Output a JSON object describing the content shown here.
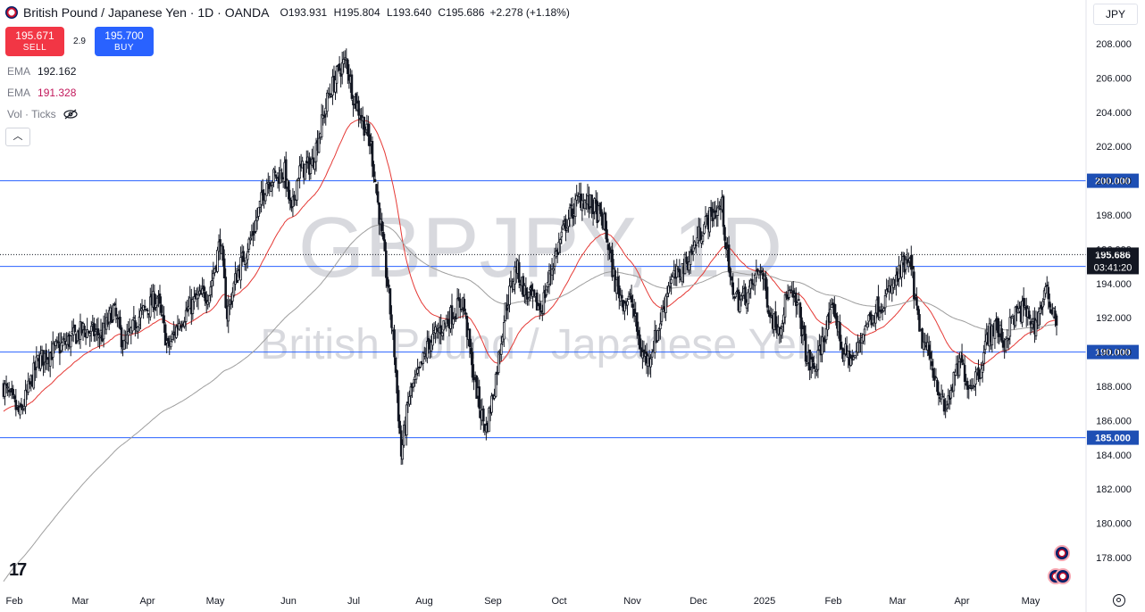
{
  "header": {
    "title": "British Pound / Japanese Yen · 1D · OANDA",
    "open_label": "O",
    "open": "193.931",
    "high_label": "H",
    "high": "195.804",
    "low_label": "L",
    "low": "193.640",
    "close_label": "C",
    "close": "195.686",
    "change": "+2.278 (+1.18%)"
  },
  "trade": {
    "sell_price": "195.671",
    "sell_label": "SELL",
    "spread": "2.9",
    "buy_price": "195.700",
    "buy_label": "BUY"
  },
  "indicators": [
    {
      "name": "EMA",
      "value": "192.162"
    },
    {
      "name": "EMA",
      "value": "191.328"
    },
    {
      "name": "Vol · Ticks",
      "value": ""
    }
  ],
  "currency": "JPY",
  "watermark": {
    "symbol": "GBPJPY, 1D",
    "description": "British Pound / Japanese Yen"
  },
  "colors": {
    "up_candle": "#131722",
    "down_candle": "#131722",
    "ema_short": "#e53935",
    "ema_long": "#9e9e9e",
    "hline": "#2962ff",
    "price_label": "#131722",
    "level_label": "#1e4fb4"
  },
  "chart_data": {
    "type": "candlestick",
    "title": "British Pound / Japanese Yen · 1D · OANDA",
    "y_axis": {
      "ticks": [
        178,
        180,
        182,
        184,
        186,
        188,
        190,
        192,
        194,
        196,
        198,
        200,
        202,
        204,
        206,
        208
      ],
      "tick_labels": [
        "178.000",
        "180.000",
        "182.000",
        "184.000",
        "186.000",
        "188.000",
        "190.000",
        "192.000",
        "194.000",
        "196.000",
        "198.000",
        "200.000",
        "202.000",
        "204.000",
        "206.000",
        "208.000"
      ],
      "range": [
        177,
        210
      ]
    },
    "x_axis": {
      "labels": [
        "Feb",
        "Mar",
        "Apr",
        "May",
        "Jun",
        "Jul",
        "Aug",
        "Sep",
        "Oct",
        "Nov",
        "Dec",
        "2025",
        "Feb",
        "Mar",
        "Apr",
        "May"
      ]
    },
    "horizontal_levels": [
      {
        "value": 200.0,
        "label": "200.000"
      },
      {
        "value": 195.0,
        "label": "195.000"
      },
      {
        "value": 190.0,
        "label": "190.000"
      },
      {
        "value": 185.0,
        "label": "185.000"
      }
    ],
    "last_price": {
      "value": 195.686,
      "label": "195.686",
      "countdown": "03:41:20"
    },
    "close_path": [
      [
        0,
        188.0
      ],
      [
        12,
        186.3
      ],
      [
        25,
        189.5
      ],
      [
        45,
        190.5
      ],
      [
        58,
        191.3
      ],
      [
        72,
        191.0
      ],
      [
        80,
        192.5
      ],
      [
        88,
        190.3
      ],
      [
        98,
        192.0
      ],
      [
        112,
        193.2
      ],
      [
        120,
        190.2
      ],
      [
        128,
        191.8
      ],
      [
        140,
        193.0
      ],
      [
        150,
        193.5
      ],
      [
        158,
        196.5
      ],
      [
        163,
        192.2
      ],
      [
        170,
        194.5
      ],
      [
        182,
        197.0
      ],
      [
        192,
        200.0
      ],
      [
        205,
        200.5
      ],
      [
        210,
        198.0
      ],
      [
        215,
        200.5
      ],
      [
        225,
        201.0
      ],
      [
        237,
        205.0
      ],
      [
        245,
        206.5
      ],
      [
        250,
        207.0
      ],
      [
        255,
        205.0
      ],
      [
        262,
        203.5
      ],
      [
        268,
        202.0
      ],
      [
        274,
        198.0
      ],
      [
        280,
        194.0
      ],
      [
        285,
        190.0
      ],
      [
        290,
        184.0
      ],
      [
        296,
        187.5
      ],
      [
        302,
        188.5
      ],
      [
        310,
        190.5
      ],
      [
        320,
        191.5
      ],
      [
        330,
        192.5
      ],
      [
        335,
        193.0
      ],
      [
        342,
        189.0
      ],
      [
        348,
        186.5
      ],
      [
        352,
        185.5
      ],
      [
        358,
        188.0
      ],
      [
        366,
        192.5
      ],
      [
        374,
        195.0
      ],
      [
        380,
        193.5
      ],
      [
        392,
        192.5
      ],
      [
        400,
        195.0
      ],
      [
        410,
        197.5
      ],
      [
        420,
        199.0
      ],
      [
        430,
        198.5
      ],
      [
        438,
        197.5
      ],
      [
        446,
        194.0
      ],
      [
        452,
        193.0
      ],
      [
        458,
        193.0
      ],
      [
        465,
        190.0
      ],
      [
        470,
        189.5
      ],
      [
        478,
        191.5
      ],
      [
        485,
        194.0
      ],
      [
        492,
        194.5
      ],
      [
        500,
        195.5
      ],
      [
        508,
        197.0
      ],
      [
        516,
        198.0
      ],
      [
        524,
        198.5
      ],
      [
        530,
        194.0
      ],
      [
        536,
        193.0
      ],
      [
        544,
        193.5
      ],
      [
        552,
        195.0
      ],
      [
        560,
        192.0
      ],
      [
        566,
        191.5
      ],
      [
        572,
        193.5
      ],
      [
        580,
        192.5
      ],
      [
        586,
        189.5
      ],
      [
        592,
        189.0
      ],
      [
        600,
        191.5
      ],
      [
        606,
        192.5
      ],
      [
        612,
        190.0
      ],
      [
        620,
        189.5
      ],
      [
        628,
        191.5
      ],
      [
        636,
        192.5
      ],
      [
        642,
        193.0
      ],
      [
        650,
        194.0
      ],
      [
        656,
        195.0
      ],
      [
        662,
        195.0
      ],
      [
        668,
        191.0
      ],
      [
        674,
        190.0
      ],
      [
        680,
        188.5
      ],
      [
        686,
        186.5
      ],
      [
        692,
        188.0
      ],
      [
        698,
        189.5
      ],
      [
        704,
        188.0
      ],
      [
        712,
        189.0
      ],
      [
        718,
        191.0
      ],
      [
        724,
        191.5
      ],
      [
        730,
        190.5
      ],
      [
        736,
        192.0
      ],
      [
        744,
        192.5
      ],
      [
        752,
        191.5
      ],
      [
        760,
        193.5
      ],
      [
        768,
        192.0
      ]
    ]
  }
}
